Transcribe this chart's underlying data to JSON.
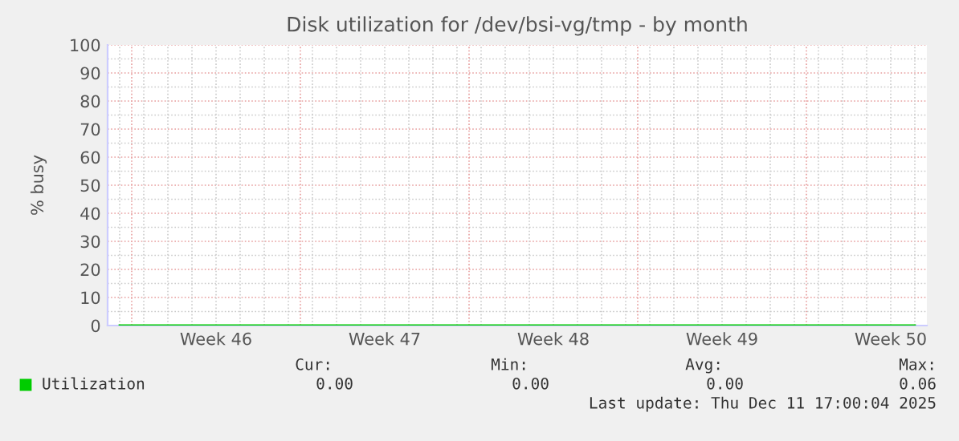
{
  "chart_data": {
    "type": "line",
    "title": "Disk utilization for /dev/bsi-vg/tmp - by month",
    "ylabel": "% busy",
    "categories": [
      null,
      null,
      null,
      null,
      "Week 46",
      null,
      null,
      null,
      null,
      null,
      null,
      "Week 47",
      null,
      null,
      null,
      null,
      null,
      null,
      "Week 48",
      null,
      null,
      null,
      null,
      null,
      null,
      "Week 49",
      null,
      null,
      null,
      null,
      null,
      null,
      "Week 50",
      null
    ],
    "series": [
      {
        "name": "Utilization",
        "color": "#00cc00",
        "values": [
          0,
          0,
          0,
          0,
          0,
          0,
          0,
          0,
          0,
          0,
          0,
          0,
          0,
          0,
          0,
          0,
          0,
          0,
          0,
          0,
          0,
          0,
          0,
          0,
          0,
          0,
          0,
          0,
          0,
          0,
          0,
          0,
          0,
          0
        ]
      }
    ],
    "ylim": [
      0,
      100
    ],
    "yticks": [
      0,
      10,
      20,
      30,
      40,
      50,
      60,
      70,
      80,
      90,
      100
    ],
    "grid": true,
    "legend": "bottom left",
    "marker": "none",
    "line_style": "solid",
    "annotations": [
      "Cur:",
      "Min:",
      "Avg:",
      "Max:",
      "0.00",
      "0.00",
      "0.00",
      "0.06",
      "Last update: Thu Dec 11 17:00:04 2025"
    ]
  }
}
